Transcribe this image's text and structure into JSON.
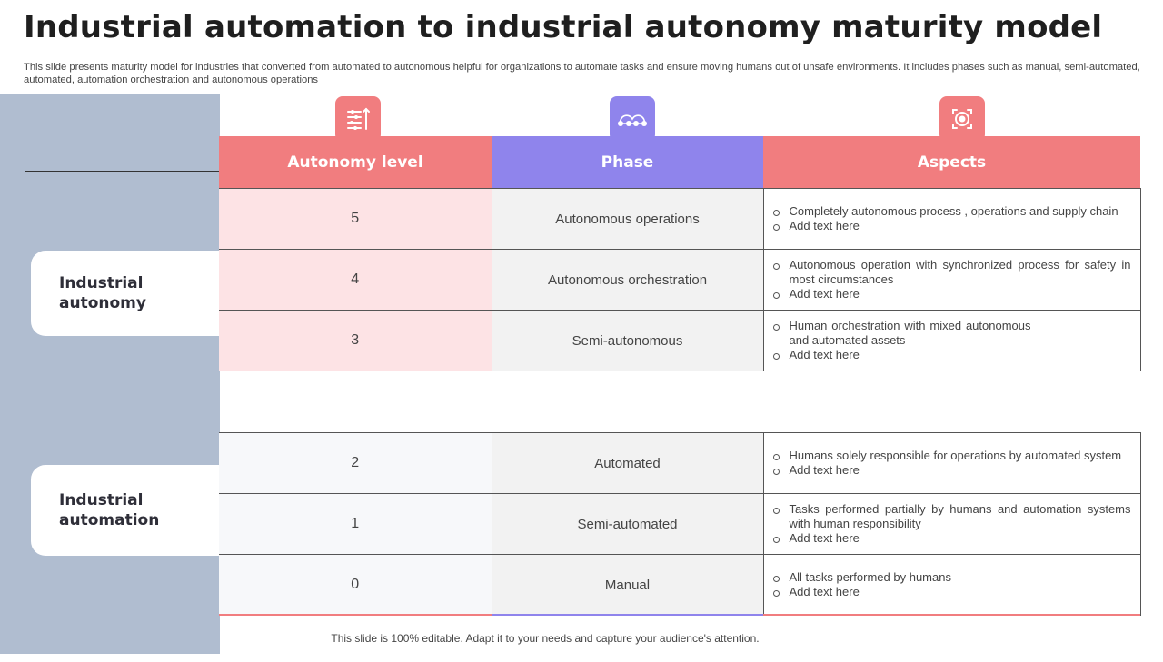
{
  "title": "Industrial automation to industrial autonomy maturity model",
  "subtitle": "This slide presents maturity model for industries that converted from automated to autonomous helpful for organizations to automate tasks and ensure moving humans out of unsafe environments. It includes phases such as manual, semi-automated, automated, automation orchestration and autonomous operations",
  "groups": {
    "autonomy": "Industrial autonomy",
    "automation": "Industrial automation"
  },
  "columns": {
    "level": "Autonomy level",
    "phase": "Phase",
    "aspects": "Aspects"
  },
  "icons": {
    "level": "sliders-icon",
    "phase": "connected-nodes-icon",
    "aspects": "robot-eye-icon"
  },
  "colors": {
    "coral": "#f17d7f",
    "violet": "#8f84ec",
    "panel": "#b0bdd0",
    "pink_cell": "#fde3e5",
    "grey_cell": "#f2f2f2"
  },
  "rows_autonomy": [
    {
      "level": "5",
      "phase": "Autonomous operations",
      "aspects": [
        "Completely autonomous process , operations and supply chain",
        "Add text here"
      ]
    },
    {
      "level": "4",
      "phase": "Autonomous orchestration",
      "aspects": [
        "Autonomous operation with synchronized process for safety in most circumstances",
        "Add text here"
      ]
    },
    {
      "level": "3",
      "phase": "Semi-autonomous",
      "aspects": [
        "Human orchestration with mixed autonomous and automated assets",
        "Add text here"
      ]
    }
  ],
  "rows_automation": [
    {
      "level": "2",
      "phase": "Automated",
      "aspects": [
        "Humans solely responsible for operations by automated system",
        "Add text here"
      ]
    },
    {
      "level": "1",
      "phase": "Semi-automated",
      "aspects": [
        "Tasks performed partially by humans and automation systems with human responsibility",
        "Add text here"
      ]
    },
    {
      "level": "0",
      "phase": "Manual",
      "aspects": [
        "All tasks performed by humans",
        "Add text here"
      ]
    }
  ],
  "footer": "This slide is 100% editable. Adapt it to your needs and capture your audience's attention."
}
